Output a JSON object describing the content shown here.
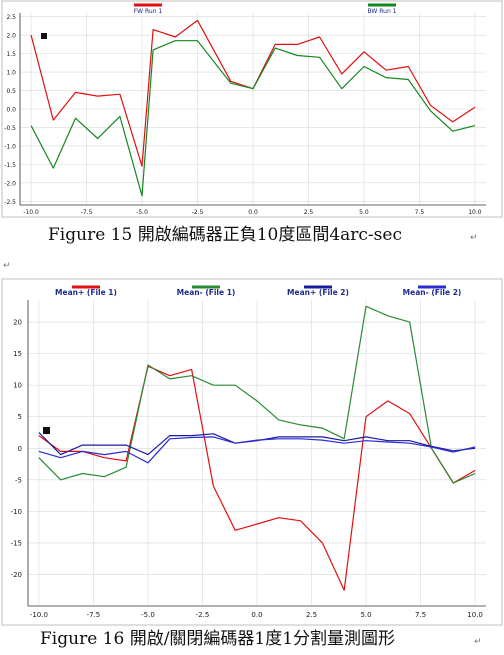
{
  "charts": [
    {
      "type": "line",
      "legend_placement": "top",
      "caption": "Figure 15  開啟編碼器正負10度區間4arc-sec",
      "xlim": [
        -10.5,
        10.5
      ],
      "ylim": [
        -2.6,
        2.6
      ],
      "x_ticks": [
        "-10.0",
        "-7.5",
        "-5.0",
        "-2.5",
        "0.0",
        "2.5",
        "5.0",
        "7.5",
        "10.0"
      ],
      "y_ticks": [
        "2.5",
        "2.0",
        "1.5",
        "1.0",
        "0.5",
        "0.0",
        "-0.5",
        "-1.0",
        "-1.5",
        "-2.0",
        "-2.5"
      ],
      "series": [
        {
          "name": "FW Run 1",
          "color": "#e01010",
          "x": [
            -10,
            -9,
            -8,
            -7,
            -6,
            -5,
            -4.5,
            -3.5,
            -2.5,
            -1,
            0,
            1,
            2,
            3,
            4,
            5,
            6,
            7,
            8,
            9,
            10
          ],
          "y": [
            2.0,
            -0.3,
            0.45,
            0.35,
            0.4,
            -1.55,
            2.15,
            1.95,
            2.4,
            0.75,
            0.55,
            1.75,
            1.75,
            1.95,
            0.95,
            1.55,
            1.05,
            1.15,
            0.1,
            -0.35,
            0.05
          ]
        },
        {
          "name": "BW Run 1",
          "color": "#15871f",
          "x": [
            -10,
            -9,
            -8,
            -7,
            -6,
            -5,
            -4.5,
            -3.5,
            -2.5,
            -1,
            0,
            1,
            2,
            3,
            4,
            5,
            6,
            7,
            8,
            9,
            10
          ],
          "y": [
            -0.45,
            -1.6,
            -0.25,
            -0.8,
            -0.2,
            -2.35,
            1.6,
            1.85,
            1.85,
            0.7,
            0.55,
            1.65,
            1.45,
            1.4,
            0.55,
            1.15,
            0.85,
            0.8,
            -0.05,
            -0.6,
            -0.45
          ]
        }
      ]
    },
    {
      "type": "line",
      "legend_placement": "top",
      "caption": "Figure 16  開啟/關閉編碼器1度1分割量測圖形",
      "xlim": [
        -10.5,
        10.5
      ],
      "ylim": [
        -25,
        23.5
      ],
      "x_ticks": [
        "-10.0",
        "-7.5",
        "-5.0",
        "-2.5",
        "0.0",
        "2.5",
        "5.0",
        "7.5",
        "10.0"
      ],
      "y_ticks": [
        "20",
        "15",
        "10",
        "5",
        "0",
        "-5",
        "-10",
        "-15",
        "-20"
      ],
      "series": [
        {
          "name": "Mean+ (File 1)",
          "color": "#e01010",
          "x": [
            -10,
            -9,
            -8,
            -7,
            -6,
            -5,
            -4,
            -3,
            -2,
            -1,
            0,
            1,
            2,
            3,
            4,
            5,
            6,
            7,
            8,
            9,
            10
          ],
          "y": [
            2,
            -0.5,
            -0.5,
            -1.5,
            -2,
            13,
            11.5,
            12.5,
            -6,
            -13,
            -12,
            -11,
            -11.5,
            -15,
            -22.5,
            5,
            7.5,
            5.5,
            0,
            -5.5,
            -3.5
          ]
        },
        {
          "name": "Mean- (File 1)",
          "color": "#2a8a34",
          "x": [
            -10,
            -9,
            -8,
            -7,
            -6,
            -5,
            -4,
            -3,
            -2,
            -1,
            0,
            1,
            2,
            3,
            4,
            5,
            6,
            7,
            8,
            9,
            10
          ],
          "y": [
            -1.5,
            -5,
            -4,
            -4.5,
            -3,
            13.2,
            11,
            11.5,
            10,
            10,
            7.5,
            4.5,
            3.7,
            3.2,
            1.5,
            22.5,
            21,
            20,
            0,
            -5.5,
            -4
          ]
        },
        {
          "name": "Mean+ (File 2)",
          "color": "#1a1aa0",
          "x": [
            -10,
            -9,
            -8,
            -7,
            -6,
            -5,
            -4,
            -3,
            -2,
            -1,
            0,
            1,
            2,
            3,
            4,
            5,
            6,
            7,
            8,
            9,
            10
          ],
          "y": [
            2.5,
            -1,
            0.5,
            0.5,
            0.5,
            -1,
            2,
            2,
            2.3,
            0.8,
            1.2,
            1.8,
            1.8,
            1.8,
            1.2,
            1.8,
            1.2,
            1.2,
            0.3,
            -0.4,
            0
          ]
        },
        {
          "name": "Mean- (File 2)",
          "color": "#2b2bd6",
          "x": [
            -10,
            -9,
            -8,
            -7,
            -6,
            -5,
            -4,
            -3,
            -2,
            -1,
            0,
            1,
            2,
            3,
            4,
            5,
            6,
            7,
            8,
            9,
            10
          ],
          "y": [
            -0.5,
            -1.5,
            -0.5,
            -1,
            -0.5,
            -2.3,
            1.5,
            1.7,
            1.8,
            0.8,
            1.3,
            1.5,
            1.5,
            1.3,
            0.8,
            1.2,
            1,
            0.8,
            0.2,
            -0.6,
            0.2
          ]
        }
      ]
    }
  ]
}
